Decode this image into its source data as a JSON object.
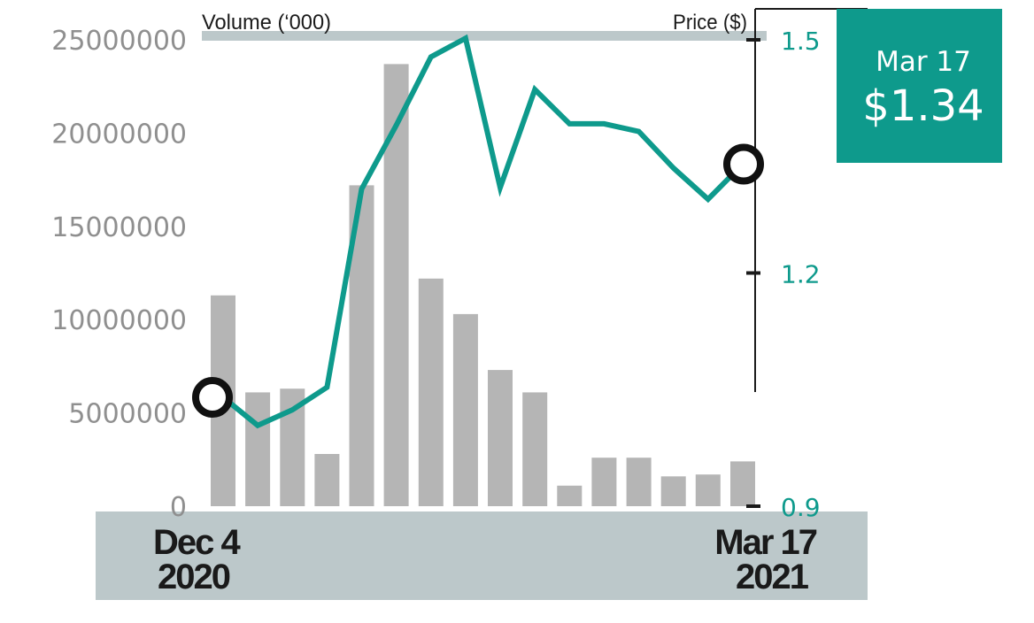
{
  "colors": {
    "price_line": "#0e9a8c",
    "bars": "#b5b5b5",
    "band": "#bcc8ca",
    "callout_bg": "#0e9a8c",
    "axis": "#1a1a1a",
    "left_ticks": "#8f8f8f",
    "marker_fill": "#ffffff",
    "marker_stroke": "#111111"
  },
  "callout": {
    "date": "Mar 17",
    "price": "$1.34"
  },
  "chart_data": {
    "type": "bar+line",
    "left_axis": {
      "label": "Volume (‘000)",
      "ticks": [
        "0",
        "5000000",
        "10000000",
        "15000000",
        "20000000",
        "25000000"
      ],
      "tick_values": [
        0,
        5000000,
        10000000,
        15000000,
        20000000,
        25000000
      ],
      "range": [
        0,
        25000000
      ]
    },
    "right_axis": {
      "label": "Price ($)",
      "ticks": [
        "0.9",
        "1.2",
        "1.5"
      ],
      "tick_values": [
        0.9,
        1.2,
        1.5
      ],
      "range": [
        0.9,
        1.5
      ]
    },
    "x_labels": {
      "start": [
        "Dec 4",
        "2020"
      ],
      "end": [
        "Mar 17",
        "2021"
      ]
    },
    "series": [
      {
        "kind": "bar",
        "axis": "left",
        "values": [
          11300000,
          6100000,
          6300000,
          2800000,
          17200000,
          23700000,
          12200000,
          10300000,
          7300000,
          6100000,
          1100000,
          2600000,
          2600000,
          1600000,
          1700000,
          2400000
        ]
      },
      {
        "kind": "line",
        "axis": "right",
        "values": [
          1.04,
          1.004,
          1.024,
          1.053,
          1.308,
          1.39,
          1.478,
          1.502,
          1.31,
          1.436,
          1.392,
          1.392,
          1.382,
          1.335,
          1.295,
          1.34
        ]
      }
    ]
  }
}
